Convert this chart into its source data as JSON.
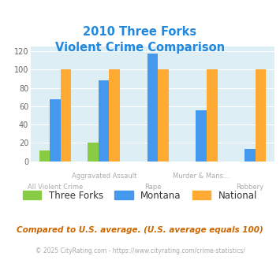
{
  "title_line1": "2010 Three Forks",
  "title_line2": "Violent Crime Comparison",
  "categories": [
    "All Violent Crime",
    "Aggravated Assault",
    "Rape",
    "Murder & Mans...",
    "Robbery"
  ],
  "cat_top": [
    "",
    "Aggravated Assault",
    "",
    "Murder & Mans...",
    ""
  ],
  "cat_bot": [
    "All Violent Crime",
    "",
    "Rape",
    "",
    "Robbery"
  ],
  "series": {
    "Three Forks": [
      12,
      20,
      0,
      0,
      0
    ],
    "Montana": [
      68,
      88,
      118,
      56,
      13
    ],
    "National": [
      100,
      100,
      100,
      100,
      100
    ]
  },
  "colors": {
    "Three Forks": "#88cc44",
    "Montana": "#4499ee",
    "National": "#ffaa33"
  },
  "ylim": [
    0,
    125
  ],
  "yticks": [
    0,
    20,
    40,
    60,
    80,
    100,
    120
  ],
  "bg_color": "#ddeef5",
  "title_color": "#2288dd",
  "axis_label_color": "#aaaaaa",
  "footer_text": "Compared to U.S. average. (U.S. average equals 100)",
  "footer_color": "#cc6600",
  "copyright_text": "© 2025 CityRating.com - https://www.cityrating.com/crime-statistics/",
  "copyright_color": "#aaaaaa",
  "bar_width": 0.22
}
